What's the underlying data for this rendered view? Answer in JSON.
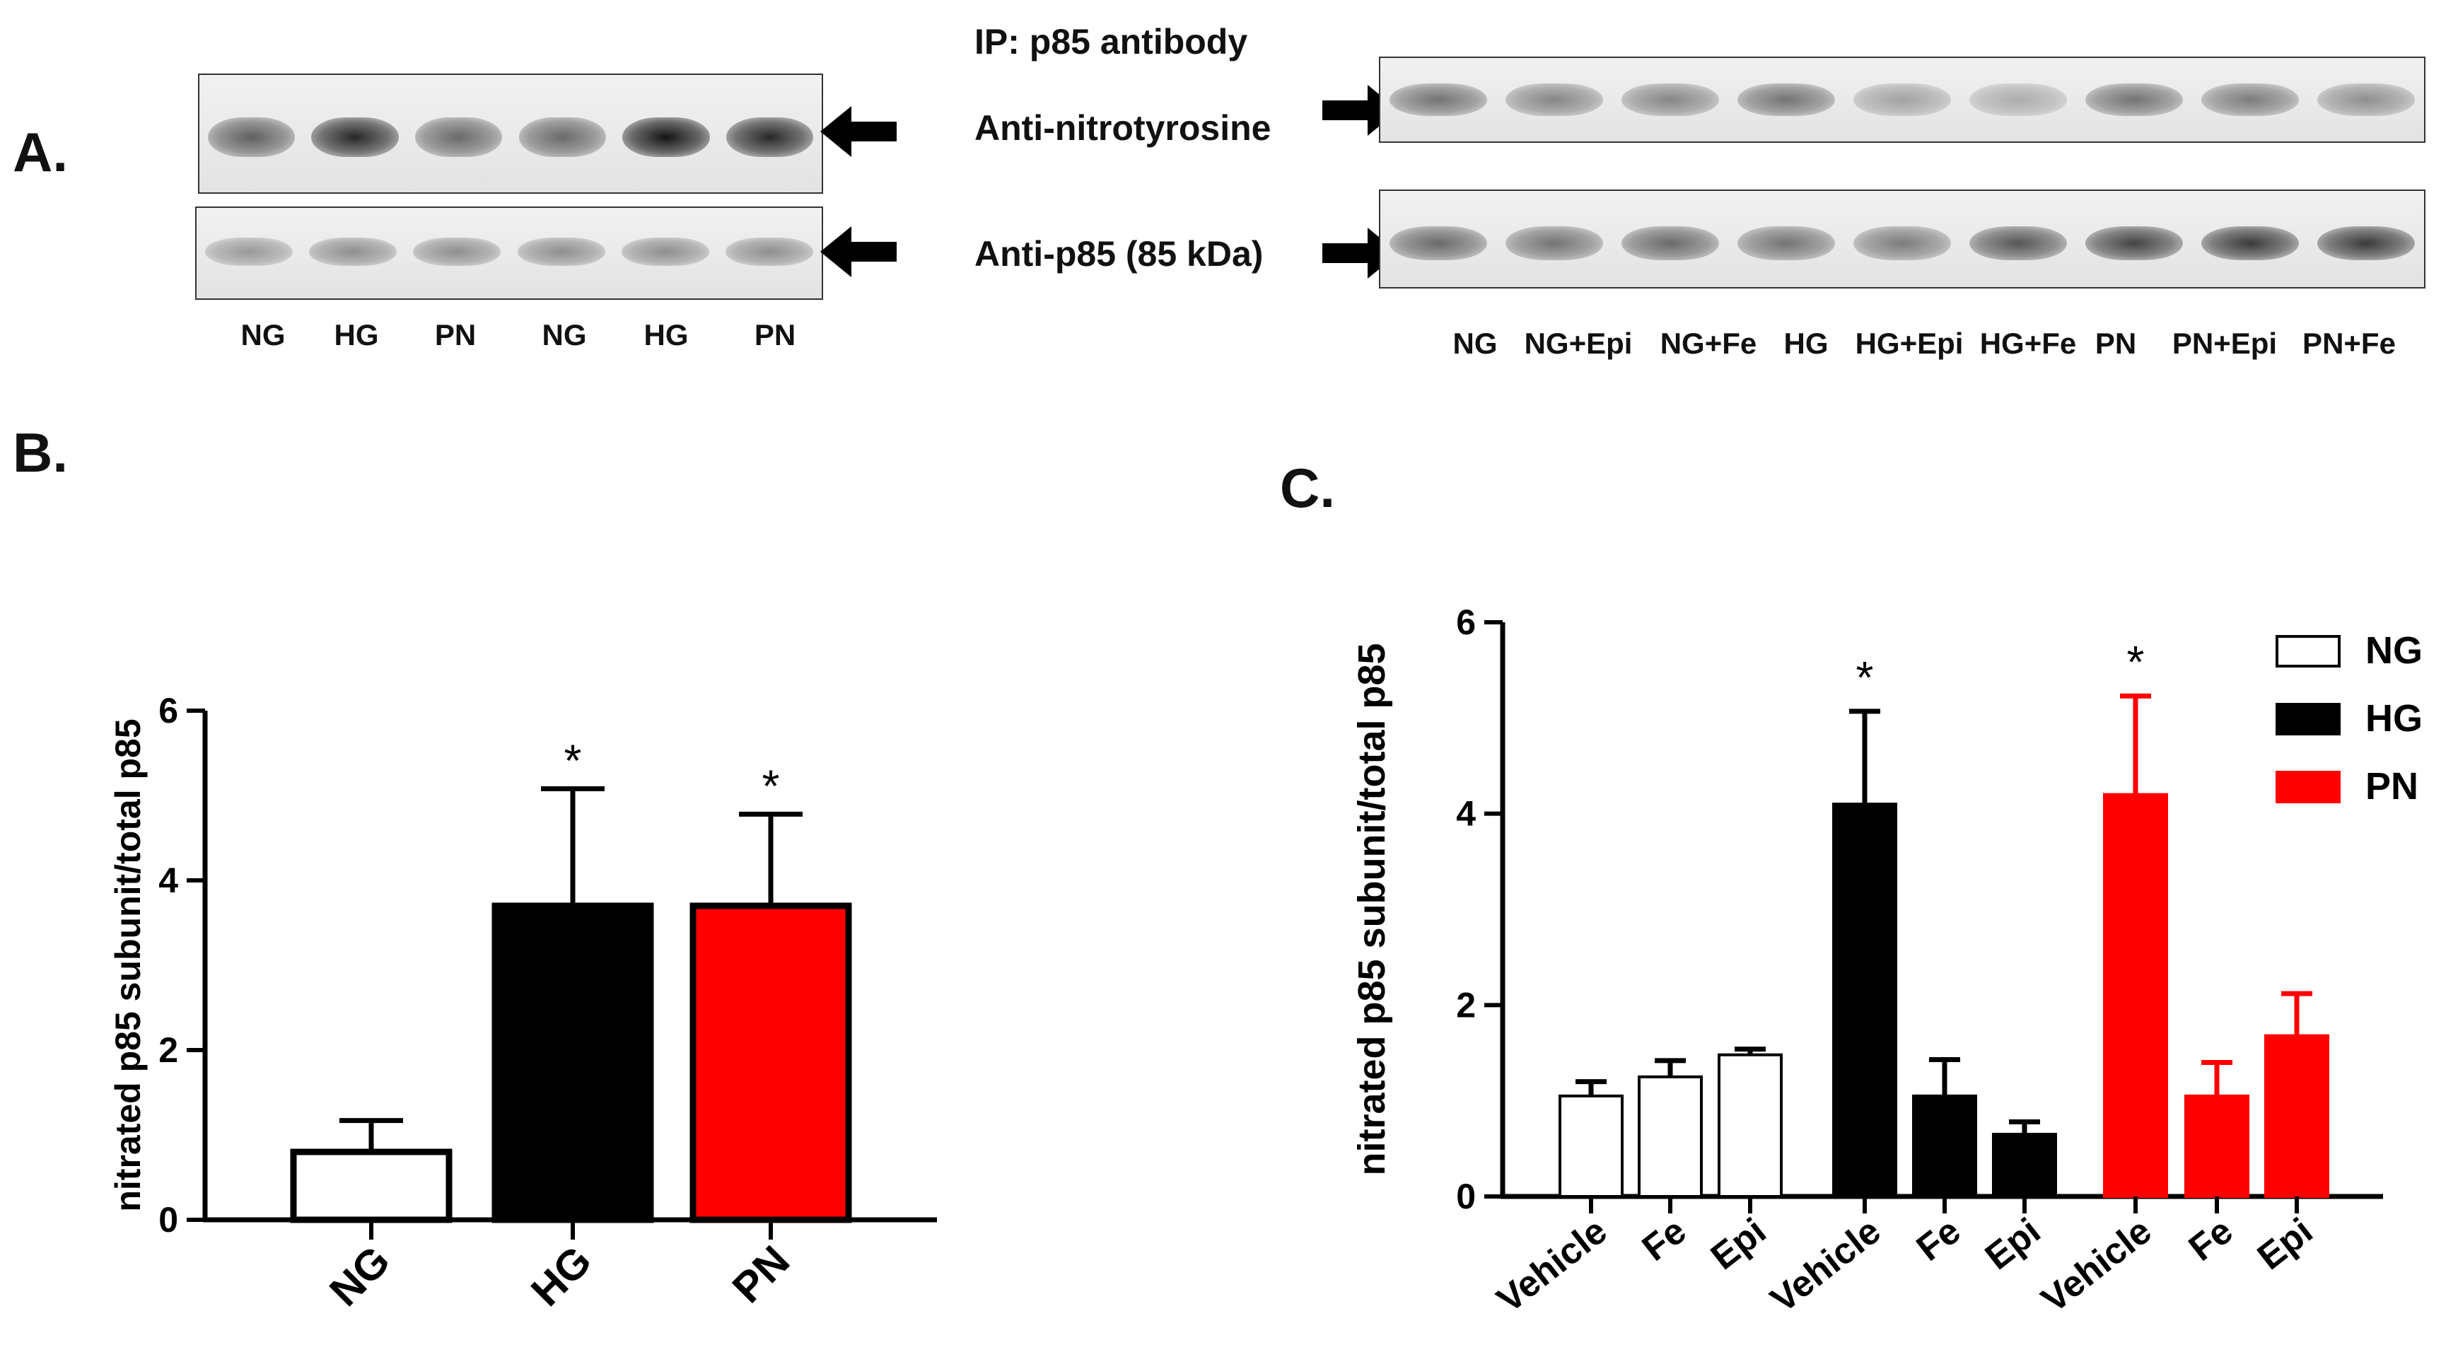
{
  "panels": {
    "A": "A.",
    "B": "B.",
    "C": "C."
  },
  "blots": {
    "ip_label": "IP: p85 antibody",
    "nitrotyrosine_label": "Anti-nitrotyrosine",
    "p85_label": "Anti-p85 (85 kDa)",
    "left_lanes": [
      "NG",
      "HG",
      "PN",
      "NG",
      "HG",
      "PN"
    ],
    "right_lanes": [
      "NG",
      "NG+Epi",
      "NG+Fe",
      "HG",
      "HG+Epi",
      "HG+Fe",
      "PN",
      "PN+Epi",
      "PN+Fe"
    ],
    "left_nitro_intensity": [
      0.55,
      0.85,
      0.5,
      0.5,
      0.95,
      0.85
    ],
    "left_p85_intensity": [
      0.25,
      0.3,
      0.3,
      0.3,
      0.3,
      0.3
    ],
    "right_nitro_intensity": [
      0.45,
      0.35,
      0.35,
      0.45,
      0.2,
      0.15,
      0.45,
      0.4,
      0.3
    ],
    "right_p85_intensity": [
      0.5,
      0.45,
      0.5,
      0.45,
      0.4,
      0.6,
      0.7,
      0.75,
      0.75
    ]
  },
  "colors": {
    "NG": "#ffffff",
    "HG": "#000000",
    "PN": "#ff0000",
    "outline": "#000000"
  },
  "chart_data": [
    {
      "type": "bar",
      "categories": [
        "NG",
        "HG",
        "PN"
      ],
      "values": [
        0.8,
        3.7,
        3.7
      ],
      "errors": [
        0.37,
        1.38,
        1.08
      ],
      "colors": [
        "#ffffff",
        "#000000",
        "#ff0000"
      ],
      "significance": [
        "",
        "*",
        "*"
      ],
      "ylabel": "nitrated p85 subunit/total p85",
      "ylim": [
        0,
        6
      ],
      "yticks": [
        0,
        2,
        4,
        6
      ]
    },
    {
      "type": "bar",
      "categories": [
        "Vehicle",
        "Fe",
        "Epi",
        "Vehicle",
        "Fe",
        "Epi",
        "Vehicle",
        "Fe",
        "Epi"
      ],
      "groups": [
        "NG",
        "NG",
        "NG",
        "HG",
        "HG",
        "HG",
        "PN",
        "PN",
        "PN"
      ],
      "values": [
        1.05,
        1.25,
        1.48,
        4.1,
        1.05,
        0.65,
        4.2,
        1.05,
        1.68
      ],
      "errors": [
        0.15,
        0.17,
        0.06,
        0.97,
        0.38,
        0.13,
        1.03,
        0.35,
        0.44
      ],
      "significance": [
        "",
        "",
        "",
        "*",
        "",
        "",
        "*",
        "",
        ""
      ],
      "ylabel": "nitrated p85 subunit/total p85",
      "ylim": [
        0,
        6
      ],
      "yticks": [
        0,
        2,
        4,
        6
      ],
      "legend": {
        "position": "top-right",
        "entries": [
          "NG",
          "HG",
          "PN"
        ]
      }
    }
  ]
}
